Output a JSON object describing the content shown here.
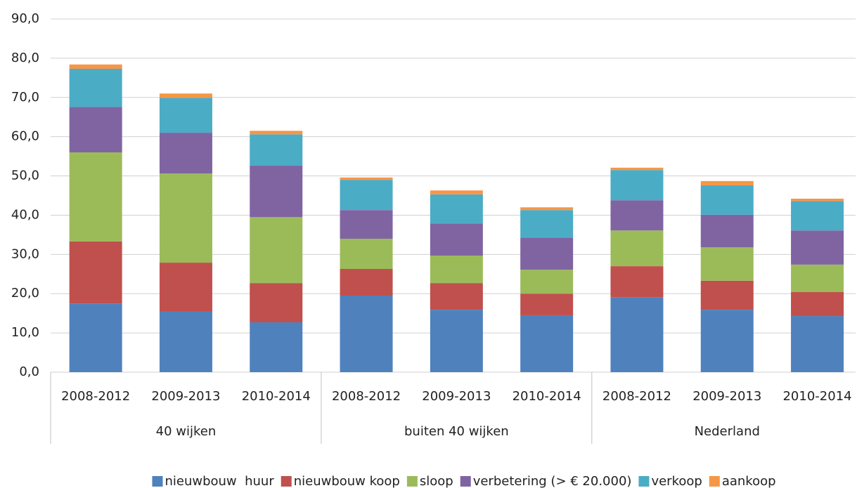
{
  "chart_data": {
    "type": "stacked_bar",
    "categories": [
      "2008-2012",
      "2009-2013",
      "2010-2014",
      "2008-2012",
      "2009-2013",
      "2010-2014",
      "2008-2012",
      "2009-2013",
      "2010-2014"
    ],
    "groups": [
      "40 wijken",
      "buiten 40 wijken",
      "Nederland"
    ],
    "series": [
      {
        "name": "nieuwbouw  huur",
        "color": "#4f81bd",
        "values": [
          17.5,
          15.4,
          12.7,
          19.5,
          15.9,
          14.5,
          19.1,
          15.9,
          14.3
        ]
      },
      {
        "name": "nieuwbouw koop",
        "color": "#c0504d",
        "values": [
          15.8,
          12.5,
          10.0,
          6.8,
          6.8,
          5.5,
          7.9,
          7.4,
          6.1
        ]
      },
      {
        "name": "sloop",
        "color": "#9bbb59",
        "values": [
          22.7,
          22.7,
          16.8,
          7.7,
          7.0,
          6.1,
          9.1,
          8.5,
          7.0
        ]
      },
      {
        "name": "verbetering (> € 20.000)",
        "color": "#8064a2",
        "values": [
          11.6,
          10.4,
          13.1,
          7.3,
          8.2,
          8.2,
          7.7,
          8.3,
          8.7
        ]
      },
      {
        "name": "verkoop",
        "color": "#4bacc6",
        "values": [
          9.7,
          8.9,
          8.0,
          7.7,
          7.4,
          7.0,
          7.7,
          7.5,
          7.5
        ]
      },
      {
        "name": "aankoop",
        "color": "#f79646",
        "values": [
          1.1,
          1.1,
          0.9,
          0.6,
          1.0,
          0.7,
          0.6,
          1.1,
          0.6
        ]
      }
    ],
    "ylim": [
      0,
      90
    ],
    "yticks": [
      {
        "value": 0,
        "label": "0,0"
      },
      {
        "value": 10,
        "label": "10,0"
      },
      {
        "value": 20,
        "label": "20,0"
      },
      {
        "value": 30,
        "label": "30,0"
      },
      {
        "value": 40,
        "label": "40,0"
      },
      {
        "value": 50,
        "label": "50,0"
      },
      {
        "value": 60,
        "label": "60,0"
      },
      {
        "value": 70,
        "label": "70,0"
      },
      {
        "value": 80,
        "label": "80,0"
      },
      {
        "value": 90,
        "label": "90,0"
      }
    ],
    "grid": true,
    "legend": "bottom"
  }
}
